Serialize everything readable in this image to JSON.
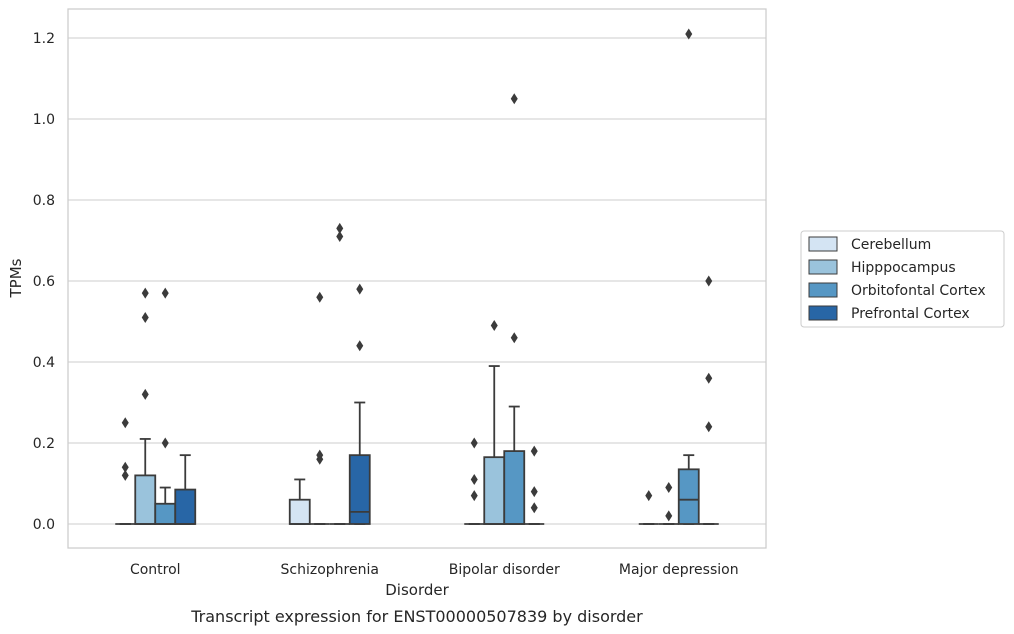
{
  "chart_data": {
    "type": "box",
    "caption": "Transcript expression for ENST00000507839 by disorder",
    "xlabel": "Disorder",
    "ylabel": "TPMs",
    "ylim": [
      -0.06,
      1.27
    ],
    "yticks": [
      "0.0",
      "0.2",
      "0.4",
      "0.6",
      "0.8",
      "1.0",
      "1.2"
    ],
    "ytick_values": [
      0,
      0.2,
      0.4,
      0.6,
      0.8,
      1.0,
      1.2
    ],
    "grid": true,
    "legend_position": "right",
    "categories": [
      "Control",
      "Schizophrenia",
      "Bipolar disorder",
      "Major depression"
    ],
    "series": [
      {
        "name": "Cerebellum",
        "color": "#d4e4f3",
        "boxes": [
          {
            "q1": 0,
            "median": 0,
            "q3": 0,
            "whisker_low": 0,
            "whisker_high": 0,
            "outliers": [
              0.12,
              0.14,
              0.25
            ]
          },
          {
            "q1": 0,
            "median": 0,
            "q3": 0.06,
            "whisker_low": 0,
            "whisker_high": 0.11,
            "outliers": []
          },
          {
            "q1": 0,
            "median": 0,
            "q3": 0,
            "whisker_low": 0,
            "whisker_high": 0,
            "outliers": [
              0.07,
              0.11,
              0.2
            ]
          },
          {
            "q1": 0,
            "median": 0,
            "q3": 0,
            "whisker_low": 0,
            "whisker_high": 0,
            "outliers": [
              0.07
            ]
          }
        ]
      },
      {
        "name": "Hipppocampus",
        "color": "#9ac3dc",
        "boxes": [
          {
            "q1": 0,
            "median": 0,
            "q3": 0.12,
            "whisker_low": 0,
            "whisker_high": 0.21,
            "outliers": [
              0.32,
              0.51,
              0.57
            ]
          },
          {
            "q1": 0,
            "median": 0,
            "q3": 0,
            "whisker_low": 0,
            "whisker_high": 0,
            "outliers": [
              0.16,
              0.17,
              0.56
            ]
          },
          {
            "q1": 0,
            "median": 0,
            "q3": 0.165,
            "whisker_low": 0,
            "whisker_high": 0.39,
            "outliers": [
              0.49
            ]
          },
          {
            "q1": 0,
            "median": 0,
            "q3": 0,
            "whisker_low": 0,
            "whisker_high": 0,
            "outliers": [
              0.02,
              0.09
            ]
          }
        ]
      },
      {
        "name": "Orbitofontal Cortex",
        "color": "#5697c4",
        "boxes": [
          {
            "q1": 0,
            "median": 0,
            "q3": 0.05,
            "whisker_low": 0,
            "whisker_high": 0.09,
            "outliers": [
              0.2,
              0.57
            ]
          },
          {
            "q1": 0,
            "median": 0,
            "q3": 0,
            "whisker_low": 0,
            "whisker_high": 0,
            "outliers": [
              0.71,
              0.73
            ]
          },
          {
            "q1": 0,
            "median": 0,
            "q3": 0.18,
            "whisker_low": 0,
            "whisker_high": 0.29,
            "outliers": [
              0.46,
              1.05
            ]
          },
          {
            "q1": 0,
            "median": 0.06,
            "q3": 0.135,
            "whisker_low": 0,
            "whisker_high": 0.17,
            "outliers": [
              1.21
            ]
          }
        ]
      },
      {
        "name": "Prefrontal Cortex",
        "color": "#2866a6",
        "boxes": [
          {
            "q1": 0,
            "median": 0,
            "q3": 0.085,
            "whisker_low": 0,
            "whisker_high": 0.17,
            "outliers": []
          },
          {
            "q1": 0,
            "median": 0.03,
            "q3": 0.17,
            "whisker_low": 0,
            "whisker_high": 0.3,
            "outliers": [
              0.44,
              0.58
            ]
          },
          {
            "q1": 0,
            "median": 0,
            "q3": 0,
            "whisker_low": 0,
            "whisker_high": 0,
            "outliers": [
              0.04,
              0.08,
              0.18
            ]
          },
          {
            "q1": 0,
            "median": 0,
            "q3": 0,
            "whisker_low": 0,
            "whisker_high": 0,
            "outliers": [
              0.24,
              0.36,
              0.6
            ]
          }
        ]
      }
    ]
  }
}
